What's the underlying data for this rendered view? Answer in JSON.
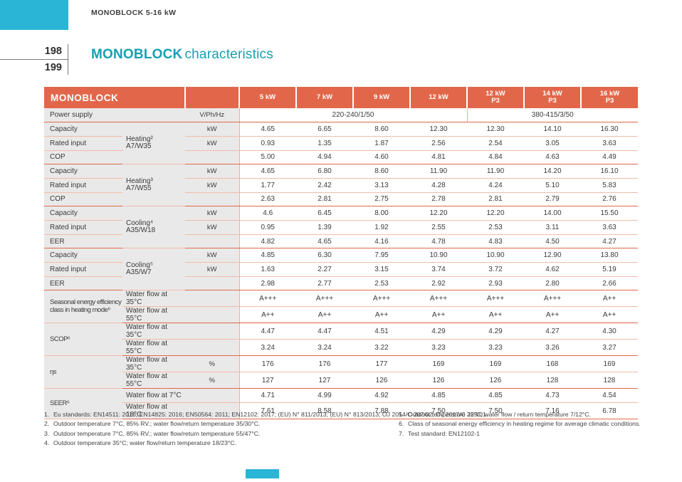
{
  "colors": {
    "accent_cyan": "#2ab5d6",
    "header_orange": "#e2674a",
    "title_teal": "#16a0b3"
  },
  "page": {
    "running_header": "MONOBLOCK 5-16 kW",
    "page_number_top": "198",
    "page_number_bottom": "199",
    "title_bold": "MONOBLOCK",
    "title_rest": "characteristics"
  },
  "table": {
    "corner_label": "MONOBLOCK",
    "columns": [
      {
        "line1": "5 kW",
        "line2": ""
      },
      {
        "line1": "7 kW",
        "line2": ""
      },
      {
        "line1": "9 kW",
        "line2": ""
      },
      {
        "line1": "12 kW",
        "line2": ""
      },
      {
        "line1": "12 kW",
        "line2": "P3"
      },
      {
        "line1": "14 kW",
        "line2": "P3"
      },
      {
        "line1": "16 kW",
        "line2": "P3"
      }
    ],
    "power_supply": {
      "label": "Power supply",
      "unit": "V/Ph/Hz",
      "single_phase_value": "220-240/1/50",
      "single_phase_span": 4,
      "three_phase_value": "380-415/3/50",
      "three_phase_span": 3
    },
    "groups": [
      {
        "condition": "Heating²",
        "condition_sub": "A7/W35",
        "rows": [
          {
            "label": "Capacity",
            "unit": "kW",
            "values": [
              "4.65",
              "6.65",
              "8.60",
              "12.30",
              "12.30",
              "14.10",
              "16.30"
            ]
          },
          {
            "label": "Rated input",
            "unit": "kW",
            "values": [
              "0.93",
              "1.35",
              "1.87",
              "2.56",
              "2.54",
              "3.05",
              "3.63"
            ]
          },
          {
            "label": "COP",
            "unit": "",
            "values": [
              "5.00",
              "4.94",
              "4.60",
              "4.81",
              "4.84",
              "4.63",
              "4.49"
            ]
          }
        ]
      },
      {
        "condition": "Heating³",
        "condition_sub": "A7/W55",
        "rows": [
          {
            "label": "Capacity",
            "unit": "kW",
            "values": [
              "4.65",
              "6.80",
              "8.60",
              "11.90",
              "11.90",
              "14.20",
              "16.10"
            ]
          },
          {
            "label": "Rated input",
            "unit": "kW",
            "values": [
              "1.77",
              "2.42",
              "3.13",
              "4.28",
              "4.24",
              "5.10",
              "5.83"
            ]
          },
          {
            "label": "COP",
            "unit": "",
            "values": [
              "2.63",
              "2.81",
              "2.75",
              "2.78",
              "2.81",
              "2.79",
              "2.76"
            ]
          }
        ]
      },
      {
        "condition": "Cooling⁴",
        "condition_sub": "A35/W18",
        "rows": [
          {
            "label": "Capacity",
            "unit": "kW",
            "values": [
              "4.6",
              "6.45",
              "8.00",
              "12.20",
              "12.20",
              "14.00",
              "15.50"
            ]
          },
          {
            "label": "Rated input",
            "unit": "kW",
            "values": [
              "0.95",
              "1.39",
              "1.92",
              "2.55",
              "2.53",
              "3.11",
              "3.63"
            ]
          },
          {
            "label": "EER",
            "unit": "",
            "values": [
              "4.82",
              "4.65",
              "4.16",
              "4.78",
              "4.83",
              "4.50",
              "4.27"
            ]
          }
        ]
      },
      {
        "condition": "Cooling⁵",
        "condition_sub": "A35/W7",
        "rows": [
          {
            "label": "Capacity",
            "unit": "kW",
            "values": [
              "4.85",
              "6.30",
              "7.95",
              "10.90",
              "10.90",
              "12.90",
              "13.80"
            ]
          },
          {
            "label": "Rated input",
            "unit": "kW",
            "values": [
              "1.63",
              "2.27",
              "3.15",
              "3.74",
              "3.72",
              "4.62",
              "5.19"
            ]
          },
          {
            "label": "EER",
            "unit": "",
            "values": [
              "2.98",
              "2.77",
              "2.53",
              "2.92",
              "2.93",
              "2.80",
              "2.66"
            ]
          }
        ]
      }
    ],
    "label_groups": [
      {
        "label_lines": [
          "Seasonal energy efficiency",
          "class in heating mode⁶"
        ],
        "rows": [
          {
            "condition": "Water flow at 35°C",
            "unit": "",
            "values": [
              "A+++",
              "A+++",
              "A+++",
              "A+++",
              "A+++",
              "A+++",
              "A++"
            ]
          },
          {
            "condition": "Water flow at 55°C",
            "unit": "",
            "values": [
              "A++",
              "A++",
              "A++",
              "A++",
              "A++",
              "A++",
              "A++"
            ]
          }
        ]
      },
      {
        "label_lines": [
          "SCOP⁶"
        ],
        "rows": [
          {
            "condition": "Water flow at 35°C",
            "unit": "",
            "values": [
              "4.47",
              "4.47",
              "4.51",
              "4.29",
              "4.29",
              "4.27",
              "4.30"
            ]
          },
          {
            "condition": "Water flow at 55°C",
            "unit": "",
            "values": [
              "3.24",
              "3.24",
              "3.22",
              "3.23",
              "3.23",
              "3.26",
              "3.27"
            ]
          }
        ]
      },
      {
        "label_lines": [
          "ηs"
        ],
        "rows": [
          {
            "condition": "Water flow at 35°C",
            "unit": "%",
            "values": [
              "176",
              "176",
              "177",
              "169",
              "169",
              "168",
              "169"
            ]
          },
          {
            "condition": "Water flow at 55°C",
            "unit": "%",
            "values": [
              "127",
              "127",
              "126",
              "126",
              "126",
              "128",
              "128"
            ]
          }
        ]
      },
      {
        "label_lines": [
          "SEER⁶"
        ],
        "rows": [
          {
            "condition": "Water flow at 7°C",
            "unit": "",
            "values": [
              "4.71",
              "4.99",
              "4.92",
              "4.85",
              "4.85",
              "4.73",
              "4.54"
            ]
          },
          {
            "condition": "Water flow at 18°C",
            "unit": "",
            "values": [
              "7.61",
              "8.58",
              "7.88",
              "7.50",
              "7.50",
              "7.16",
              "6.78"
            ]
          }
        ]
      }
    ]
  },
  "footnotes": {
    "left": [
      {
        "num": "1.",
        "text": "Eu standards: EN14511: 2016; EN14825: 2016; EN50564: 2011; EN12102: 2017; (EU) N° 811/2013; (EU) N° 813/2013; OJ 2014/C 207/02; OJ 2017/C 229/01."
      },
      {
        "num": "2.",
        "text": "Outdoor temperature 7°C, 85% RV.; water flow/return temperature 35/30°C."
      },
      {
        "num": "3.",
        "text": "Outdoor temperature 7°C, 85% RV.; water flow/return temperature 55/47°C."
      },
      {
        "num": "4.",
        "text": "Outdoor temperature 35°C; water flow/return temperature 18/23°C."
      }
    ],
    "right": [
      {
        "num": "5.",
        "text": "Outdoor temperature 35°C; water flow / return temperature 7/12°C."
      },
      {
        "num": "6.",
        "text": "Class of seasonal energy efficiency in heating regime for average climatic conditions."
      },
      {
        "num": "7.",
        "text": "Test standard: EN12102-1"
      }
    ]
  }
}
